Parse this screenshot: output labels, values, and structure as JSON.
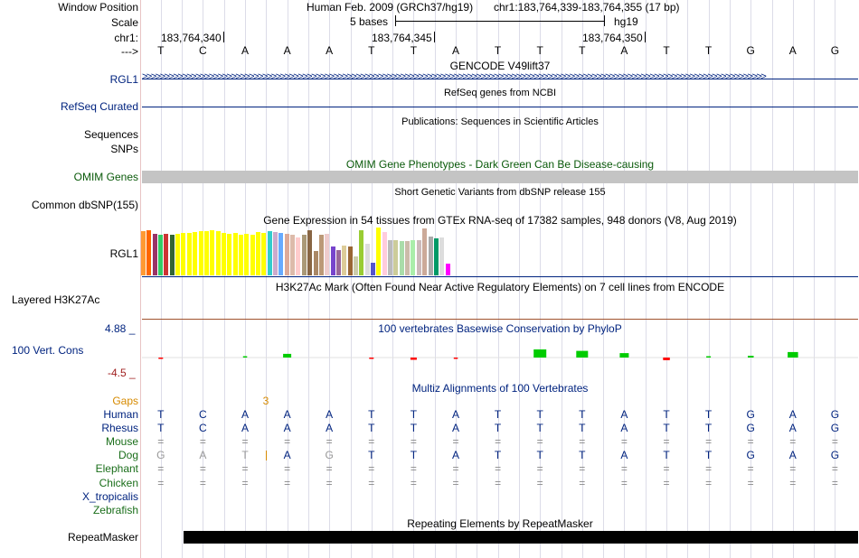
{
  "header": {
    "window_position_label": "Window Position",
    "scale_label": "Scale",
    "chrom_label": "chr1:",
    "strand_label": "--->",
    "assembly_text": "Human Feb. 2009 (GRCh37/hg19)",
    "position_text": "chr1:183,764,339-183,764,355 (17 bp)",
    "scale_text": "5 bases",
    "scale_db": "hg19",
    "coord_ticks": [
      "183,764,340",
      "183,764,345",
      "183,764,350"
    ]
  },
  "reference_bases": [
    "T",
    "C",
    "A",
    "A",
    "A",
    "T",
    "T",
    "A",
    "T",
    "T",
    "T",
    "A",
    "T",
    "T",
    "G",
    "A",
    "G"
  ],
  "tracks": {
    "gencode": {
      "title": "GENCODE V49lift37",
      "label": "RGL1"
    },
    "refseq": {
      "title": "RefSeq genes from NCBI",
      "label": "RefSeq Curated"
    },
    "publications": {
      "title": "Publications: Sequences in Scientific Articles",
      "label_line1": "Sequences",
      "label_line2": "SNPs"
    },
    "omim": {
      "title": "OMIM Gene Phenotypes - Dark Green Can Be Disease-causing",
      "label": "OMIM Genes"
    },
    "dbsnp": {
      "title": "Short Genetic Variants from dbSNP release 155",
      "label": "Common dbSNP(155)"
    },
    "gtex": {
      "title": "Gene Expression in 54 tissues from GTEx RNA-seq of 17382 samples, 948 donors (V8, Aug 2019)",
      "label": "RGL1",
      "bars": [
        {
          "v": 0.92,
          "color": "#ff9933"
        },
        {
          "v": 0.95,
          "color": "#ff6600"
        },
        {
          "v": 0.86,
          "color": "#993366"
        },
        {
          "v": 0.84,
          "color": "#33cc66"
        },
        {
          "v": 0.86,
          "color": "#cc3333"
        },
        {
          "v": 0.84,
          "color": "#336633"
        },
        {
          "v": 0.86,
          "color": "#ffff00"
        },
        {
          "v": 0.88,
          "color": "#ffff00"
        },
        {
          "v": 0.88,
          "color": "#ffff00"
        },
        {
          "v": 0.9,
          "color": "#ffff00"
        },
        {
          "v": 0.92,
          "color": "#ffff00"
        },
        {
          "v": 0.92,
          "color": "#ffff00"
        },
        {
          "v": 0.94,
          "color": "#ffff00"
        },
        {
          "v": 0.92,
          "color": "#ffff00"
        },
        {
          "v": 0.88,
          "color": "#ffff00"
        },
        {
          "v": 0.86,
          "color": "#ffff00"
        },
        {
          "v": 0.88,
          "color": "#ffff00"
        },
        {
          "v": 0.84,
          "color": "#ffff00"
        },
        {
          "v": 0.86,
          "color": "#ffff00"
        },
        {
          "v": 0.84,
          "color": "#ffff00"
        },
        {
          "v": 0.9,
          "color": "#ffff00"
        },
        {
          "v": 0.88,
          "color": "#ffff00"
        },
        {
          "v": 0.92,
          "color": "#33cccc"
        },
        {
          "v": 0.9,
          "color": "#ccaacc"
        },
        {
          "v": 0.88,
          "color": "#66aaff"
        },
        {
          "v": 0.86,
          "color": "#ddaa99"
        },
        {
          "v": 0.84,
          "color": "#ddbbaa"
        },
        {
          "v": 0.8,
          "color": "#ffcccc"
        },
        {
          "v": 0.84,
          "color": "#aa9977"
        },
        {
          "v": 0.94,
          "color": "#886644"
        },
        {
          "v": 0.5,
          "color": "#aa8866"
        },
        {
          "v": 0.84,
          "color": "#bb9977"
        },
        {
          "v": 0.86,
          "color": "#eecccc"
        },
        {
          "v": 0.6,
          "color": "#7744cc"
        },
        {
          "v": 0.52,
          "color": "#996699"
        },
        {
          "v": 0.62,
          "color": "#ddcc99"
        },
        {
          "v": 0.6,
          "color": "#996633"
        },
        {
          "v": 0.4,
          "color": "#ccccaa"
        },
        {
          "v": 0.94,
          "color": "#99cc33"
        },
        {
          "v": 0.66,
          "color": "#dddddd"
        },
        {
          "v": 0.26,
          "color": "#5555cc"
        },
        {
          "v": 1.0,
          "color": "#ffff00"
        },
        {
          "v": 0.9,
          "color": "#ffccdd"
        },
        {
          "v": 0.74,
          "color": "#bbbbbb"
        },
        {
          "v": 0.74,
          "color": "#cccc99"
        },
        {
          "v": 0.72,
          "color": "#aaddaa"
        },
        {
          "v": 0.72,
          "color": "#ccbbaa"
        },
        {
          "v": 0.74,
          "color": "#aaeeaa"
        },
        {
          "v": 0.74,
          "color": "#ccbbbb"
        },
        {
          "v": 0.98,
          "color": "#ccaa99"
        },
        {
          "v": 0.82,
          "color": "#aaaaaa"
        },
        {
          "v": 0.78,
          "color": "#009966"
        },
        {
          "v": 0.8,
          "color": "#dddddd"
        },
        {
          "v": 0.24,
          "color": "#ff00ff"
        }
      ]
    },
    "h3k27ac": {
      "title": "H3K27Ac Mark (Often Found Near Active Regulatory Elements) on 7 cell lines from ENCODE",
      "label": "Layered H3K27Ac"
    },
    "phylop": {
      "title": "100 vertebrates Basewise Conservation by PhyloP",
      "label": "100 Vert. Cons",
      "max_label": "4.88 _",
      "min_label": "-4.5 _",
      "max": 4.88,
      "min": -4.5,
      "scores": [
        -0.2,
        0,
        0.1,
        1.0,
        0,
        -0.2,
        -0.6,
        -0.1,
        0,
        2.2,
        1.8,
        1.2,
        -0.7,
        0.2,
        0.5,
        1.5,
        0
      ]
    },
    "multiz": {
      "title": "Multiz Alignments of 100 Vertebrates",
      "gaps_label": "Gaps",
      "gap_count": "3",
      "species": [
        {
          "name": "Human",
          "bases": [
            "T",
            "C",
            "A",
            "A",
            "A",
            "T",
            "T",
            "A",
            "T",
            "T",
            "T",
            "A",
            "T",
            "T",
            "G",
            "A",
            "G"
          ]
        },
        {
          "name": "Rhesus",
          "bases": [
            "T",
            "C",
            "A",
            "A",
            "A",
            "T",
            "T",
            "A",
            "T",
            "T",
            "T",
            "A",
            "T",
            "T",
            "G",
            "A",
            "G"
          ]
        },
        {
          "name": "Mouse",
          "bases": [
            "=",
            "=",
            "=",
            "=",
            "=",
            "=",
            "=",
            "=",
            "=",
            "=",
            "=",
            "=",
            "=",
            "=",
            "=",
            "=",
            "="
          ]
        },
        {
          "name": "Dog",
          "bases": [
            "G",
            "A",
            "T",
            "A",
            "G",
            "T",
            "T",
            "A",
            "T",
            "T",
            "T",
            "A",
            "T",
            "T",
            "G",
            "A",
            "G"
          ]
        },
        {
          "name": "Elephant",
          "bases": [
            "=",
            "=",
            "=",
            "=",
            "=",
            "=",
            "=",
            "=",
            "=",
            "=",
            "=",
            "=",
            "=",
            "=",
            "=",
            "=",
            "="
          ]
        },
        {
          "name": "Chicken",
          "bases": [
            "=",
            "=",
            "=",
            "=",
            "=",
            "=",
            "=",
            "=",
            "=",
            "=",
            "=",
            "=",
            "=",
            "=",
            "=",
            "=",
            "="
          ]
        },
        {
          "name": "X_tropicalis",
          "bases": [
            "",
            "",
            "",
            "",
            "",
            "",
            "",
            "",
            "",
            "",
            "",
            "",
            "",
            "",
            "",
            "",
            ""
          ]
        },
        {
          "name": "Zebrafish",
          "bases": [
            "",
            "",
            "",
            "",
            "",
            "",
            "",
            "",
            "",
            "",
            "",
            "",
            "",
            "",
            "",
            "",
            ""
          ]
        }
      ]
    },
    "repeatmasker": {
      "title": "Repeating Elements by RepeatMasker",
      "label": "RepeatMasker"
    }
  },
  "colors": {
    "navy": "#00237f",
    "omim_gray": "#c4c4c4",
    "h3k_line": "#a0522d",
    "phylop_pos": "#00cc00",
    "phylop_neg": "#ff0000",
    "gaps_orange": "#d68a00"
  }
}
